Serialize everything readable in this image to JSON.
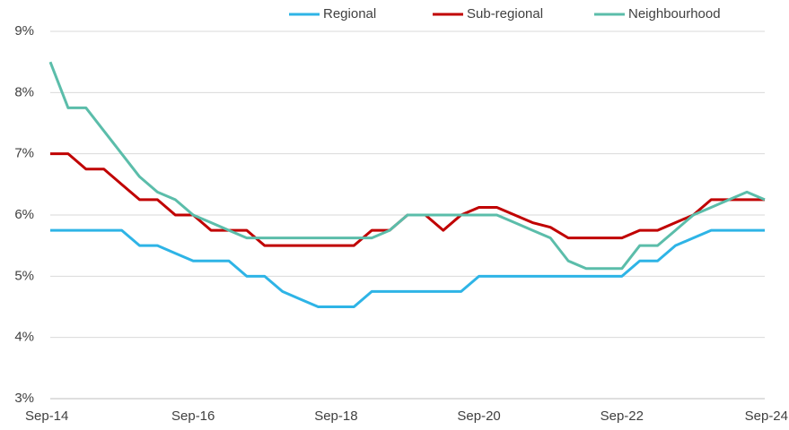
{
  "chart_data": {
    "type": "line",
    "categories": [
      "Sep-14",
      null,
      null,
      null,
      null,
      null,
      null,
      null,
      "Sep-16",
      null,
      null,
      null,
      null,
      null,
      null,
      null,
      "Sep-18",
      null,
      null,
      null,
      null,
      null,
      null,
      null,
      "Sep-20",
      null,
      null,
      null,
      null,
      null,
      null,
      null,
      "Sep-22",
      null,
      null,
      null,
      null,
      null,
      null,
      null,
      "Sep-24"
    ],
    "series": [
      {
        "name": "Regional",
        "color": "#2eb4e6",
        "values": [
          5.75,
          5.75,
          5.75,
          5.75,
          5.75,
          5.5,
          5.5,
          5.375,
          5.25,
          5.25,
          5.25,
          5.0,
          5.0,
          4.75,
          4.625,
          4.5,
          4.5,
          4.5,
          4.75,
          4.75,
          4.75,
          4.75,
          4.75,
          4.75,
          5.0,
          5.0,
          5.0,
          5.0,
          5.0,
          5.0,
          5.0,
          5.0,
          5.0,
          5.25,
          5.25,
          5.5,
          5.625,
          5.75,
          5.75,
          5.75,
          5.75
        ]
      },
      {
        "name": "Sub-regional",
        "color": "#c00000",
        "values": [
          7.0,
          7.0,
          6.75,
          6.75,
          6.5,
          6.25,
          6.25,
          6.0,
          6.0,
          5.75,
          5.75,
          5.75,
          5.5,
          5.5,
          5.5,
          5.5,
          5.5,
          5.5,
          5.75,
          5.75,
          6.0,
          6.0,
          5.75,
          6.0,
          6.125,
          6.125,
          6.0,
          5.875,
          5.8,
          5.625,
          5.625,
          5.625,
          5.625,
          5.75,
          5.75,
          5.875,
          6.0,
          6.25,
          6.25,
          6.25,
          6.25
        ]
      },
      {
        "name": "Neighbourhood",
        "color": "#5bbdaa",
        "values": [
          8.5,
          7.75,
          7.75,
          7.375,
          7.0,
          6.625,
          6.375,
          6.25,
          6.0,
          5.875,
          5.75,
          5.625,
          5.625,
          5.625,
          5.625,
          5.625,
          5.625,
          5.625,
          5.625,
          5.75,
          6.0,
          6.0,
          6.0,
          6.0,
          6.0,
          6.0,
          5.875,
          5.75,
          5.625,
          5.25,
          5.125,
          5.125,
          5.125,
          5.5,
          5.5,
          5.75,
          6.0,
          6.125,
          6.25,
          6.375,
          6.25
        ]
      }
    ],
    "ylim": [
      3,
      9
    ],
    "yticks": [
      {
        "value": 3,
        "label": "3%"
      },
      {
        "value": 4,
        "label": "4%"
      },
      {
        "value": 5,
        "label": "5%"
      },
      {
        "value": 6,
        "label": "6%"
      },
      {
        "value": 7,
        "label": "7%"
      },
      {
        "value": 8,
        "label": "8%"
      },
      {
        "value": 9,
        "label": "9%"
      }
    ],
    "grid": true,
    "legend": "top"
  }
}
